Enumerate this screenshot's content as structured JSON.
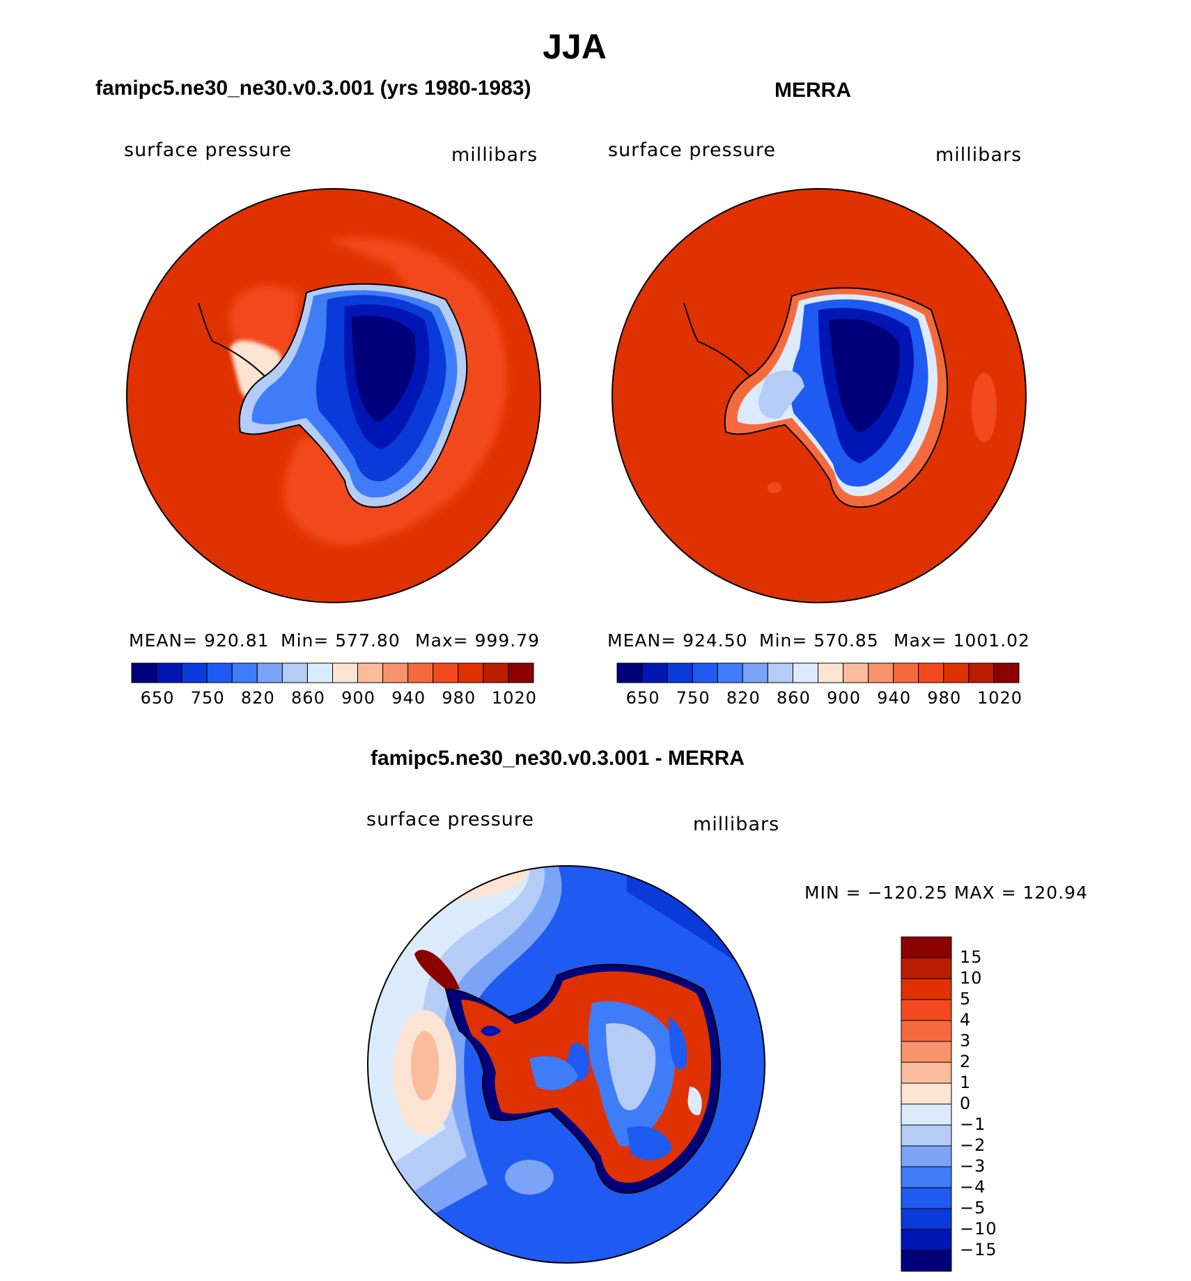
{
  "title": "JJA",
  "panels": [
    {
      "title": "famipc5.ne30_ne30.v0.3.001 (yrs 1980-1983)",
      "left_label": "surface pressure",
      "right_label": "millibars",
      "stats": {
        "mean": "MEAN= 920.81",
        "min": "Min= 577.80",
        "max": "Max= 999.79"
      },
      "colorbar_ticks": [
        "650",
        "750",
        "820",
        "860",
        "900",
        "940",
        "980",
        "1020"
      ]
    },
    {
      "title": "MERRA",
      "left_label": "surface pressure",
      "right_label": "millibars",
      "stats": {
        "mean": "MEAN= 924.50",
        "min": "Min= 570.85",
        "max": "Max= 1001.02"
      },
      "colorbar_ticks": [
        "650",
        "750",
        "820",
        "860",
        "900",
        "940",
        "980",
        "1020"
      ]
    }
  ],
  "diff_panel": {
    "title": "famipc5.ne30_ne30.v0.3.001 - MERRA",
    "left_label": "surface pressure",
    "right_label": "millibars",
    "minmax": "MIN = −120.25 MAX = 120.94",
    "colorbar_ticks": [
      "15",
      "10",
      "5",
      "4",
      "3",
      "2",
      "1",
      "0",
      "−1",
      "−2",
      "−3",
      "−4",
      "−5",
      "−10",
      "−15"
    ]
  },
  "colors": {
    "abs_scale": [
      "#00007a",
      "#0016b4",
      "#0a3ad8",
      "#1f5af2",
      "#3f7cf8",
      "#7ca4f6",
      "#b4ccf6",
      "#dcebfb",
      "#fde3d2",
      "#fbbc9b",
      "#f8936b",
      "#f56a3c",
      "#f24a1e",
      "#e03200",
      "#b81d00",
      "#8b0000"
    ],
    "diff_scale": [
      "#8b0000",
      "#b81d00",
      "#e03200",
      "#f24a1e",
      "#f56a3c",
      "#f8936b",
      "#fbbc9b",
      "#fde3d2",
      "#dcebfb",
      "#b4ccf6",
      "#7ca4f6",
      "#3f7cf8",
      "#1f5af2",
      "#0a3ad8",
      "#0016b4",
      "#00007a"
    ]
  }
}
